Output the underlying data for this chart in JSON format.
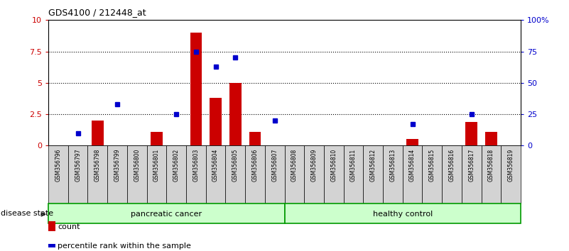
{
  "title": "GDS4100 / 212448_at",
  "samples": [
    "GSM356796",
    "GSM356797",
    "GSM356798",
    "GSM356799",
    "GSM356800",
    "GSM356801",
    "GSM356802",
    "GSM356803",
    "GSM356804",
    "GSM356805",
    "GSM356806",
    "GSM356807",
    "GSM356808",
    "GSM356809",
    "GSM356810",
    "GSM356811",
    "GSM356812",
    "GSM356813",
    "GSM356814",
    "GSM356815",
    "GSM356816",
    "GSM356817",
    "GSM356818",
    "GSM356819"
  ],
  "count_values": [
    0,
    0,
    2.0,
    0,
    0,
    1.1,
    0,
    9.0,
    3.8,
    5.0,
    1.1,
    0,
    0,
    0,
    0,
    0,
    0,
    0,
    0.5,
    0,
    0,
    1.9,
    1.1,
    0
  ],
  "percentile_values": [
    null,
    10,
    null,
    33,
    null,
    null,
    25,
    75,
    63,
    70,
    null,
    20,
    null,
    null,
    null,
    null,
    null,
    null,
    17,
    null,
    null,
    25,
    null,
    null
  ],
  "group_labels": [
    "pancreatic cancer",
    "healthy control"
  ],
  "group_ranges": [
    [
      0,
      12
    ],
    [
      12,
      24
    ]
  ],
  "ylim_left": [
    0,
    10
  ],
  "ylim_right": [
    0,
    100
  ],
  "yticks_left": [
    0,
    2.5,
    5.0,
    7.5,
    10.0
  ],
  "ytick_labels_left": [
    "0",
    "2.5",
    "5",
    "7.5",
    "10"
  ],
  "yticks_right": [
    0,
    25,
    50,
    75,
    100
  ],
  "ytick_labels_right": [
    "0",
    "25",
    "50",
    "75",
    "100%"
  ],
  "bar_color": "#cc0000",
  "dot_color": "#0000cc",
  "bg_color": "#ffffff",
  "tick_bg_color": "#d3d3d3",
  "left_axis_color": "#cc0000",
  "right_axis_color": "#0000cc",
  "group_fill_color": "#ccffcc",
  "group_border_color": "#22cc22",
  "group_border_dark": "#009900",
  "disease_state_label": "disease state",
  "legend_count_label": "count",
  "legend_percentile_label": "percentile rank within the sample"
}
